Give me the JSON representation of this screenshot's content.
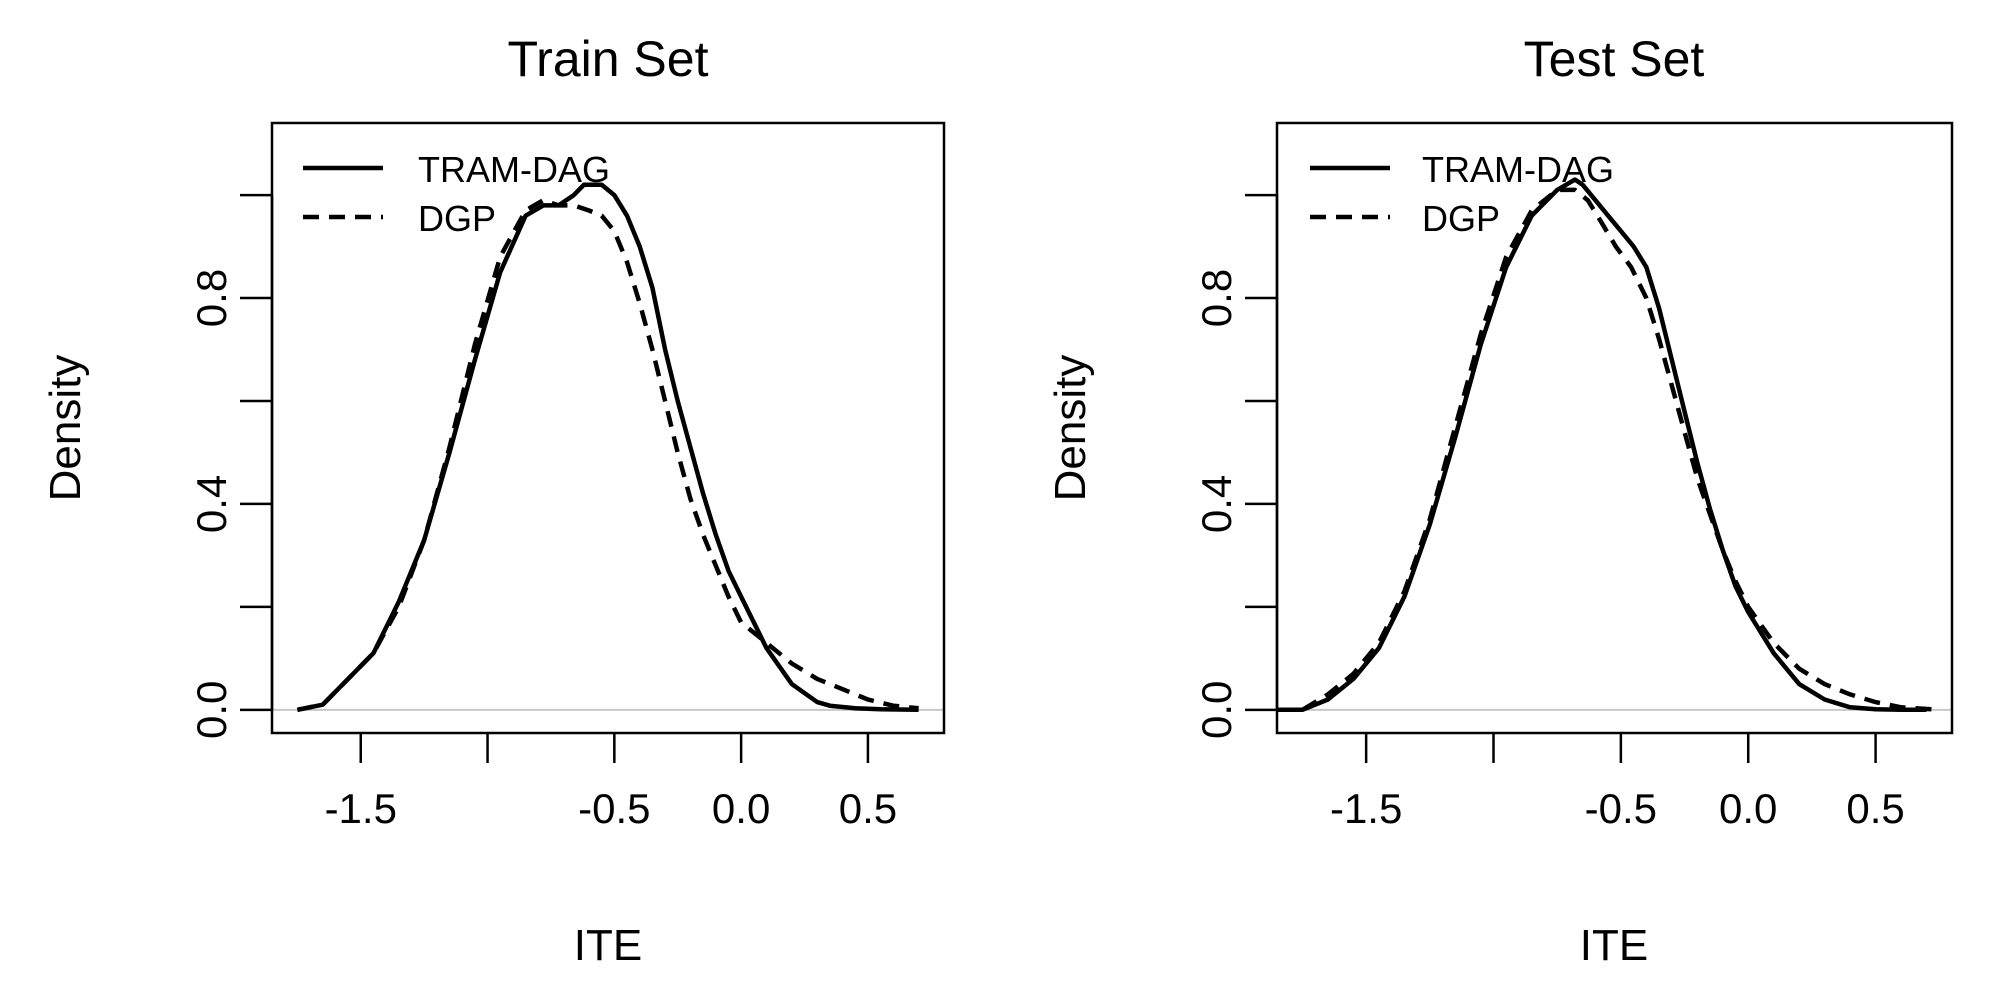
{
  "chart_data": [
    {
      "type": "line",
      "title": "Train Set",
      "xlabel": "ITE",
      "ylabel": "Density",
      "xlim": [
        -1.85,
        0.8
      ],
      "ylim": [
        -0.045,
        1.14
      ],
      "x_ticks": [
        -1.5,
        -1.0,
        -0.5,
        0.0,
        0.5
      ],
      "x_tick_labels": [
        "-1.5",
        "",
        "-0.5",
        "0.0",
        "0.5"
      ],
      "y_ticks": [
        0.0,
        0.2,
        0.4,
        0.6,
        0.8,
        1.0
      ],
      "y_tick_labels": [
        "0.0",
        "",
        "0.4",
        "",
        "0.8",
        ""
      ],
      "baseline": 0,
      "legend": {
        "position": "top-left",
        "entries": [
          "TRAM-DAG",
          "DGP"
        ]
      },
      "series": [
        {
          "name": "TRAM-DAG",
          "style": "solid",
          "x": [
            -1.75,
            -1.65,
            -1.55,
            -1.45,
            -1.35,
            -1.25,
            -1.15,
            -1.05,
            -0.95,
            -0.85,
            -0.78,
            -0.72,
            -0.66,
            -0.62,
            -0.58,
            -0.55,
            -0.5,
            -0.45,
            -0.4,
            -0.35,
            -0.3,
            -0.25,
            -0.2,
            -0.15,
            -0.1,
            -0.05,
            0.0,
            0.1,
            0.2,
            0.3,
            0.35,
            0.45,
            0.55,
            0.7
          ],
          "y": [
            0.0,
            0.01,
            0.06,
            0.11,
            0.21,
            0.33,
            0.5,
            0.68,
            0.85,
            0.96,
            0.98,
            0.98,
            1.0,
            1.02,
            1.02,
            1.02,
            1.0,
            0.96,
            0.9,
            0.82,
            0.7,
            0.6,
            0.51,
            0.42,
            0.34,
            0.27,
            0.22,
            0.12,
            0.05,
            0.015,
            0.008,
            0.003,
            0.001,
            0.0
          ]
        },
        {
          "name": "DGP",
          "style": "dashed",
          "x": [
            -1.75,
            -1.65,
            -1.55,
            -1.45,
            -1.35,
            -1.25,
            -1.15,
            -1.05,
            -0.95,
            -0.85,
            -0.78,
            -0.72,
            -0.66,
            -0.6,
            -0.55,
            -0.5,
            -0.45,
            -0.4,
            -0.35,
            -0.3,
            -0.25,
            -0.2,
            -0.15,
            -0.1,
            -0.05,
            0.0,
            0.1,
            0.2,
            0.3,
            0.4,
            0.5,
            0.6,
            0.7
          ],
          "y": [
            0.0,
            0.01,
            0.06,
            0.11,
            0.2,
            0.33,
            0.51,
            0.71,
            0.88,
            0.97,
            0.99,
            0.98,
            0.98,
            0.97,
            0.96,
            0.93,
            0.87,
            0.79,
            0.7,
            0.6,
            0.5,
            0.41,
            0.34,
            0.28,
            0.22,
            0.17,
            0.13,
            0.09,
            0.06,
            0.04,
            0.02,
            0.008,
            0.003
          ]
        }
      ]
    },
    {
      "type": "line",
      "title": "Test Set",
      "xlabel": "ITE",
      "ylabel": "Density",
      "xlim": [
        -1.85,
        0.8
      ],
      "ylim": [
        -0.045,
        1.14
      ],
      "x_ticks": [
        -1.5,
        -1.0,
        -0.5,
        0.0,
        0.5
      ],
      "x_tick_labels": [
        "-1.5",
        "",
        "-0.5",
        "0.0",
        "0.5"
      ],
      "y_ticks": [
        0.0,
        0.2,
        0.4,
        0.6,
        0.8,
        1.0
      ],
      "y_tick_labels": [
        "0.0",
        "",
        "0.4",
        "",
        "0.8",
        ""
      ],
      "baseline": 0,
      "legend": {
        "position": "top-left",
        "entries": [
          "TRAM-DAG",
          "DGP"
        ]
      },
      "series": [
        {
          "name": "TRAM-DAG",
          "style": "solid",
          "x": [
            -1.85,
            -1.75,
            -1.65,
            -1.55,
            -1.45,
            -1.35,
            -1.25,
            -1.15,
            -1.05,
            -0.95,
            -0.85,
            -0.75,
            -0.68,
            -0.65,
            -0.6,
            -0.55,
            -0.5,
            -0.45,
            -0.4,
            -0.35,
            -0.3,
            -0.25,
            -0.2,
            -0.15,
            -0.1,
            -0.05,
            0.0,
            0.1,
            0.2,
            0.3,
            0.4,
            0.5,
            0.6,
            0.7
          ],
          "y": [
            0.0,
            0.0,
            0.02,
            0.06,
            0.12,
            0.22,
            0.36,
            0.53,
            0.71,
            0.86,
            0.96,
            1.01,
            1.03,
            1.02,
            0.99,
            0.96,
            0.93,
            0.9,
            0.86,
            0.78,
            0.68,
            0.58,
            0.48,
            0.39,
            0.31,
            0.24,
            0.19,
            0.11,
            0.05,
            0.02,
            0.005,
            0.001,
            0.0,
            0.0
          ]
        },
        {
          "name": "DGP",
          "style": "dashed",
          "x": [
            -1.85,
            -1.75,
            -1.65,
            -1.55,
            -1.45,
            -1.35,
            -1.25,
            -1.15,
            -1.05,
            -0.95,
            -0.85,
            -0.75,
            -0.68,
            -0.63,
            -0.58,
            -0.52,
            -0.46,
            -0.4,
            -0.35,
            -0.3,
            -0.25,
            -0.2,
            -0.15,
            -0.1,
            -0.05,
            0.0,
            0.1,
            0.2,
            0.3,
            0.4,
            0.5,
            0.6,
            0.75
          ],
          "y": [
            0.0,
            0.0,
            0.03,
            0.07,
            0.13,
            0.23,
            0.37,
            0.55,
            0.73,
            0.88,
            0.97,
            1.01,
            1.01,
            0.99,
            0.95,
            0.9,
            0.86,
            0.8,
            0.72,
            0.63,
            0.54,
            0.45,
            0.38,
            0.31,
            0.25,
            0.2,
            0.13,
            0.08,
            0.05,
            0.03,
            0.015,
            0.005,
            0.0
          ]
        }
      ]
    }
  ]
}
